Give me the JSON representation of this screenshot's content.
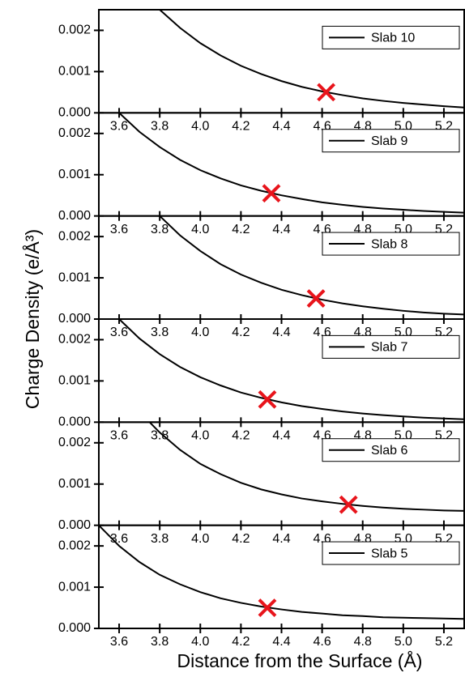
{
  "xlabel": "Distance from the Surface (Å)",
  "ylabel": "Charge Density (e/Å³)",
  "chart_data": [
    {
      "type": "line",
      "xlim": [
        3.5,
        5.3
      ],
      "ylim": [
        0,
        0.0025
      ],
      "xticks": [
        3.6,
        3.8,
        {
          "value": 4,
          "label": "4.0"
        },
        4.2,
        4.4,
        4.6,
        4.8,
        {
          "value": 5,
          "label": "5.0"
        },
        5.2
      ],
      "yticks": [
        {
          "value": 0,
          "label": "0.000"
        },
        {
          "value": 0.001,
          "label": "0.001"
        },
        {
          "value": 0.002,
          "label": "0.002"
        }
      ],
      "legend": "upper right",
      "series": [
        {
          "name": "Slab 10",
          "color": "#000000",
          "x": [
            3.8,
            3.9,
            4,
            4.1,
            4.2,
            4.3,
            4.4,
            4.5,
            4.6,
            4.7,
            4.8,
            4.9,
            5,
            5.1,
            5.2,
            5.3
          ],
          "values": [
            0.0025,
            0.00206,
            0.00169,
            0.00139,
            0.00114,
            0.00094,
            0.00077,
            0.00063,
            0.00052,
            0.00043,
            0.00035,
            0.00029,
            0.00024,
            0.0002,
            0.00016,
            0.00013
          ]
        }
      ],
      "markers": [
        {
          "x": 4.62,
          "y": 0.0005
        }
      ],
      "marker_color": "#e8141b"
    },
    {
      "type": "line",
      "xlim": [
        3.5,
        5.3
      ],
      "ylim": [
        0,
        0.0025
      ],
      "xticks": [
        3.6,
        3.8,
        {
          "value": 4,
          "label": "4.0"
        },
        4.2,
        4.4,
        4.6,
        4.8,
        {
          "value": 5,
          "label": "5.0"
        },
        5.2
      ],
      "yticks": [
        {
          "value": 0,
          "label": "0.000"
        },
        {
          "value": 0.001,
          "label": "0.001"
        },
        {
          "value": 0.002,
          "label": "0.002"
        }
      ],
      "legend": "upper right",
      "series": [
        {
          "name": "Slab 9",
          "color": "#000000",
          "x": [
            3.6,
            3.7,
            3.8,
            3.9,
            4,
            4.1,
            4.2,
            4.3,
            4.4,
            4.5,
            4.6,
            4.7,
            4.8,
            4.9,
            5,
            5.1,
            5.2,
            5.3
          ],
          "values": [
            0.0025,
            0.00204,
            0.00167,
            0.00136,
            0.00111,
            0.00091,
            0.00074,
            0.00061,
            0.0005,
            0.00041,
            0.00033,
            0.00027,
            0.00022,
            0.00018,
            0.00015,
            0.00012,
            0.0001,
            8e-05
          ]
        }
      ],
      "markers": [
        {
          "x": 4.35,
          "y": 0.00055
        }
      ],
      "marker_color": "#e8141b"
    },
    {
      "type": "line",
      "xlim": [
        3.5,
        5.3
      ],
      "ylim": [
        0,
        0.0025
      ],
      "xticks": [
        3.6,
        3.8,
        {
          "value": 4,
          "label": "4.0"
        },
        4.2,
        4.4,
        4.6,
        4.8,
        {
          "value": 5,
          "label": "5.0"
        },
        5.2
      ],
      "yticks": [
        {
          "value": 0,
          "label": "0.000"
        },
        {
          "value": 0.001,
          "label": "0.001"
        },
        {
          "value": 0.002,
          "label": "0.002"
        }
      ],
      "legend": "upper right",
      "series": [
        {
          "name": "Slab 8",
          "color": "#000000",
          "x": [
            3.8,
            3.9,
            4,
            4.1,
            4.2,
            4.3,
            4.4,
            4.5,
            4.6,
            4.7,
            4.8,
            4.9,
            5,
            5.1,
            5.2,
            5.3
          ],
          "values": [
            0.0025,
            0.00203,
            0.00165,
            0.00133,
            0.00108,
            0.00088,
            0.00071,
            0.00058,
            0.00047,
            0.00038,
            0.00031,
            0.00025,
            0.0002,
            0.00016,
            0.00013,
            0.00011
          ]
        }
      ],
      "markers": [
        {
          "x": 4.57,
          "y": 0.0005
        }
      ],
      "marker_color": "#e8141b"
    },
    {
      "type": "line",
      "xlim": [
        3.5,
        5.3
      ],
      "ylim": [
        0,
        0.0025
      ],
      "xticks": [
        3.6,
        3.8,
        {
          "value": 4,
          "label": "4.0"
        },
        4.2,
        4.4,
        4.6,
        4.8,
        {
          "value": 5,
          "label": "5.0"
        },
        5.2
      ],
      "yticks": [
        {
          "value": 0,
          "label": "0.000"
        },
        {
          "value": 0.001,
          "label": "0.001"
        },
        {
          "value": 0.002,
          "label": "0.002"
        }
      ],
      "legend": "upper right",
      "series": [
        {
          "name": "Slab 7",
          "color": "#000000",
          "x": [
            3.6,
            3.7,
            3.8,
            3.9,
            4,
            4.1,
            4.2,
            4.3,
            4.4,
            4.5,
            4.6,
            4.7,
            4.8,
            4.9,
            5,
            5.1,
            5.2,
            5.3
          ],
          "values": [
            0.0025,
            0.00203,
            0.00165,
            0.00134,
            0.00109,
            0.00089,
            0.00072,
            0.00059,
            0.00048,
            0.00039,
            0.00032,
            0.00026,
            0.00021,
            0.00017,
            0.00014,
            0.00011,
            9e-05,
            7e-05
          ]
        }
      ],
      "markers": [
        {
          "x": 4.33,
          "y": 0.00055
        }
      ],
      "marker_color": "#e8141b"
    },
    {
      "type": "line",
      "xlim": [
        3.5,
        5.3
      ],
      "ylim": [
        0,
        0.0025
      ],
      "xticks": [
        3.6,
        3.8,
        {
          "value": 4,
          "label": "4.0"
        },
        4.2,
        4.4,
        4.6,
        4.8,
        {
          "value": 5,
          "label": "5.0"
        },
        5.2
      ],
      "yticks": [
        {
          "value": 0,
          "label": "0.000"
        },
        {
          "value": 0.001,
          "label": "0.001"
        },
        {
          "value": 0.002,
          "label": "0.002"
        }
      ],
      "legend": "upper right",
      "series": [
        {
          "name": "Slab 6",
          "color": "#000000",
          "x": [
            3.75,
            3.8,
            3.9,
            4,
            4.1,
            4.2,
            4.3,
            4.4,
            4.5,
            4.6,
            4.7,
            4.8,
            4.9,
            5,
            5.1,
            5.2,
            5.3
          ],
          "values": [
            0.0025,
            0.00225,
            0.00183,
            0.00149,
            0.00124,
            0.00103,
            0.00087,
            0.00075,
            0.00065,
            0.00058,
            0.00052,
            0.00047,
            0.00043,
            0.0004,
            0.00038,
            0.00036,
            0.00035
          ]
        }
      ],
      "markers": [
        {
          "x": 4.73,
          "y": 0.0005
        }
      ],
      "marker_color": "#e8141b"
    },
    {
      "type": "line",
      "xlim": [
        3.5,
        5.3
      ],
      "ylim": [
        0,
        0.0025
      ],
      "xticks": [
        3.6,
        3.8,
        {
          "value": 4,
          "label": "4.0"
        },
        4.2,
        4.4,
        4.6,
        4.8,
        {
          "value": 5,
          "label": "5.0"
        },
        5.2
      ],
      "yticks": [
        {
          "value": 0,
          "label": "0.000"
        },
        {
          "value": 0.001,
          "label": "0.001"
        },
        {
          "value": 0.002,
          "label": "0.002"
        }
      ],
      "legend": "upper right",
      "series": [
        {
          "name": "Slab 5",
          "color": "#000000",
          "x": [
            3.5,
            3.6,
            3.7,
            3.8,
            3.9,
            4,
            4.1,
            4.2,
            4.3,
            4.4,
            4.5,
            4.6,
            4.7,
            4.8,
            4.9,
            5,
            5.1,
            5.2,
            5.3
          ],
          "values": [
            0.0025,
            0.002,
            0.00161,
            0.0013,
            0.00107,
            0.00088,
            0.00073,
            0.00062,
            0.00053,
            0.00046,
            0.0004,
            0.00036,
            0.00032,
            0.0003,
            0.00027,
            0.00026,
            0.00025,
            0.00024,
            0.00023
          ]
        }
      ],
      "markers": [
        {
          "x": 4.33,
          "y": 0.0005
        }
      ],
      "marker_color": "#e8141b"
    }
  ]
}
